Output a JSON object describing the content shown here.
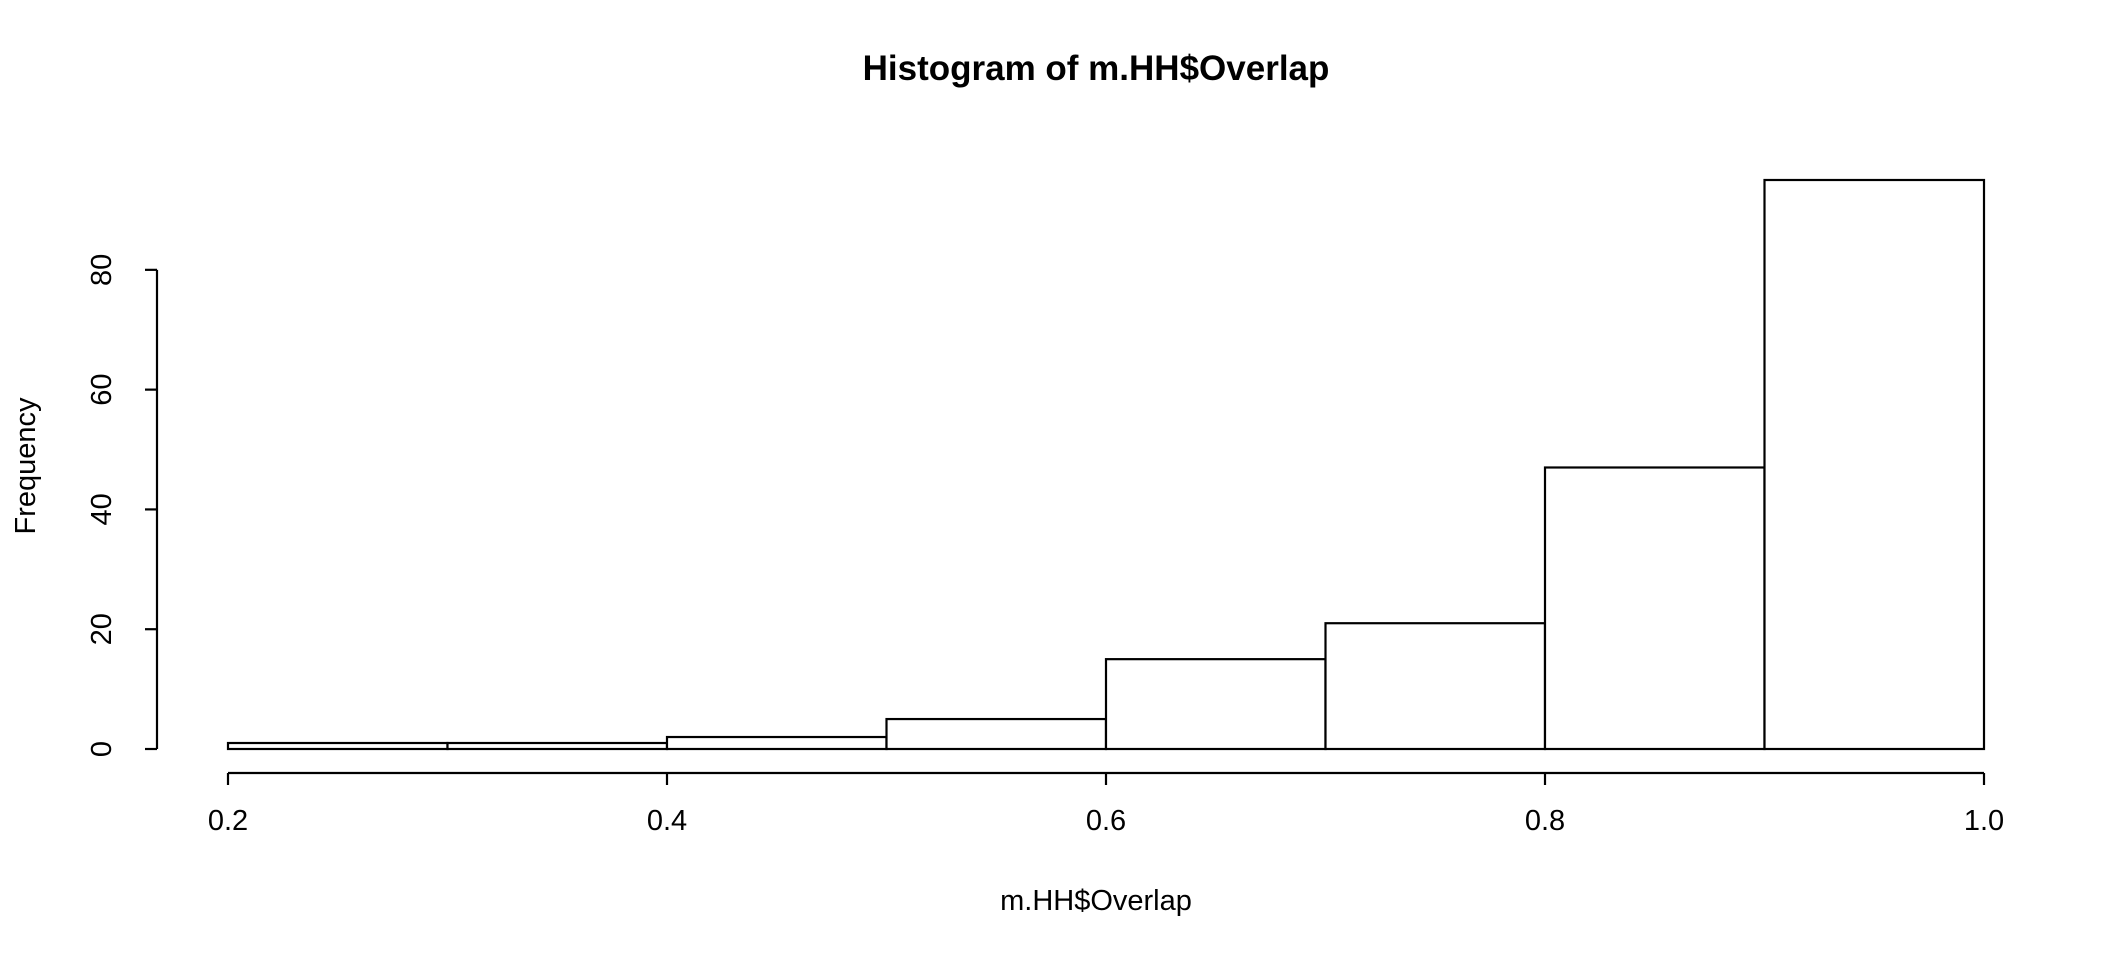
{
  "chart_data": {
    "type": "bar",
    "subtype": "histogram",
    "title": "Histogram of m.HH$Overlap",
    "xlabel": "m.HH$Overlap",
    "ylabel": "Frequency",
    "bins": [
      {
        "start": 0.2,
        "end": 0.3,
        "count": 1
      },
      {
        "start": 0.3,
        "end": 0.4,
        "count": 1
      },
      {
        "start": 0.4,
        "end": 0.5,
        "count": 2
      },
      {
        "start": 0.5,
        "end": 0.6,
        "count": 5
      },
      {
        "start": 0.6,
        "end": 0.7,
        "count": 15
      },
      {
        "start": 0.7,
        "end": 0.8,
        "count": 21
      },
      {
        "start": 0.8,
        "end": 0.9,
        "count": 47
      },
      {
        "start": 0.9,
        "end": 1.0,
        "count": 95
      }
    ],
    "xlim": [
      0.2,
      1.0
    ],
    "ylim": [
      0,
      95
    ],
    "x_ticks": [
      0.2,
      0.4,
      0.6,
      0.8,
      1.0
    ],
    "x_tick_labels": [
      "0.2",
      "0.4",
      "0.6",
      "0.8",
      "1.0"
    ],
    "y_ticks": [
      0,
      20,
      40,
      60,
      80
    ],
    "y_tick_labels": [
      "0",
      "20",
      "40",
      "60",
      "80"
    ],
    "grid": false,
    "legend": "none",
    "colors": {
      "bar_fill": "#ffffff",
      "bar_stroke": "#000000",
      "background": "#ffffff"
    }
  }
}
